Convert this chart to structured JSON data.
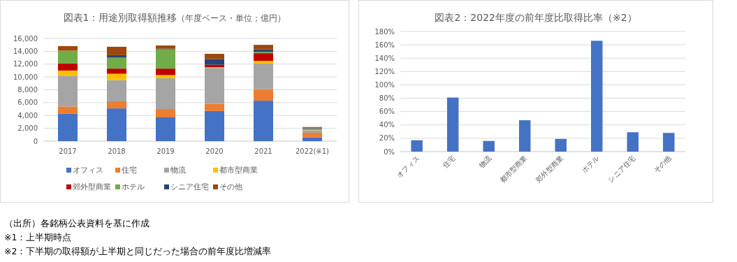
{
  "chart_data": [
    {
      "type": "bar",
      "title": "図表1：用途別取得額推移",
      "subtitle": "（年度ベース・単位；億円）",
      "stacked": true,
      "categories": [
        "2017",
        "2018",
        "2019",
        "2020",
        "2021",
        "2022(※1)"
      ],
      "series": [
        {
          "name": "オフィス",
          "color": "#4472c4",
          "values": [
            4300,
            5100,
            3700,
            4700,
            6300,
            600
          ]
        },
        {
          "name": "住宅",
          "color": "#ed7d31",
          "values": [
            1100,
            1100,
            1300,
            1100,
            1800,
            700
          ]
        },
        {
          "name": "物流",
          "color": "#a5a5a5",
          "values": [
            4800,
            3300,
            4800,
            5600,
            4000,
            400
          ]
        },
        {
          "name": "都市型商業",
          "color": "#ffc000",
          "values": [
            800,
            1000,
            500,
            100,
            400,
            100
          ]
        },
        {
          "name": "郊外型商業",
          "color": "#c00000",
          "values": [
            1100,
            800,
            1000,
            400,
            1200,
            100
          ]
        },
        {
          "name": "ホテル",
          "color": "#70ad47",
          "values": [
            2000,
            1700,
            3000,
            0,
            200,
            100
          ]
        },
        {
          "name": "シニア住宅",
          "color": "#264478",
          "values": [
            0,
            400,
            100,
            900,
            400,
            100
          ]
        },
        {
          "name": "その他",
          "color": "#9e480e",
          "values": [
            700,
            1300,
            500,
            800,
            700,
            100
          ]
        }
      ],
      "ylim": [
        0,
        16000
      ],
      "yticks": [
        0,
        {
          "value": 2000,
          "label": "2,000"
        },
        {
          "value": 4000,
          "label": "4,000"
        },
        {
          "value": 6000,
          "label": "6,000"
        },
        {
          "value": 8000,
          "label": "8,000"
        },
        {
          "value": 10000,
          "label": "10,000"
        },
        {
          "value": 12000,
          "label": "12,000"
        },
        {
          "value": 14000,
          "label": "14,000"
        },
        {
          "value": 16000,
          "label": "16,000"
        }
      ],
      "grid": "y",
      "legend": "bottom",
      "annotations": [
        "（出所）各銘柄公表資料を基に作成",
        "※1：上半期時点"
      ]
    },
    {
      "type": "bar",
      "title": "図表2：2022年度の前年度比取得比率（※2）",
      "categories": [
        "オフィス",
        "住宅",
        "物流",
        "都市型商業",
        "郊外型商業",
        "ホテル",
        "シニア住宅",
        "その他"
      ],
      "series": [
        {
          "color": "#4472c4",
          "values": [
            17,
            81,
            16,
            47,
            19,
            166,
            29,
            28
          ]
        }
      ],
      "ylim": [
        0,
        180
      ],
      "yticks": [
        {
          "value": 0,
          "label": "0%"
        },
        {
          "value": 20,
          "label": "20%"
        },
        {
          "value": 40,
          "label": "40%"
        },
        {
          "value": 60,
          "label": "60%"
        },
        {
          "value": 80,
          "label": "80%"
        },
        {
          "value": 100,
          "label": "100%"
        },
        {
          "value": 120,
          "label": "120%"
        },
        {
          "value": 140,
          "label": "140%"
        },
        {
          "value": 160,
          "label": "160%"
        },
        {
          "value": 180,
          "label": "180%"
        }
      ],
      "grid": "y",
      "annotations": [
        "※2：下半期の取得額が上半期と同じだった場合の前年度比増減率"
      ]
    }
  ]
}
